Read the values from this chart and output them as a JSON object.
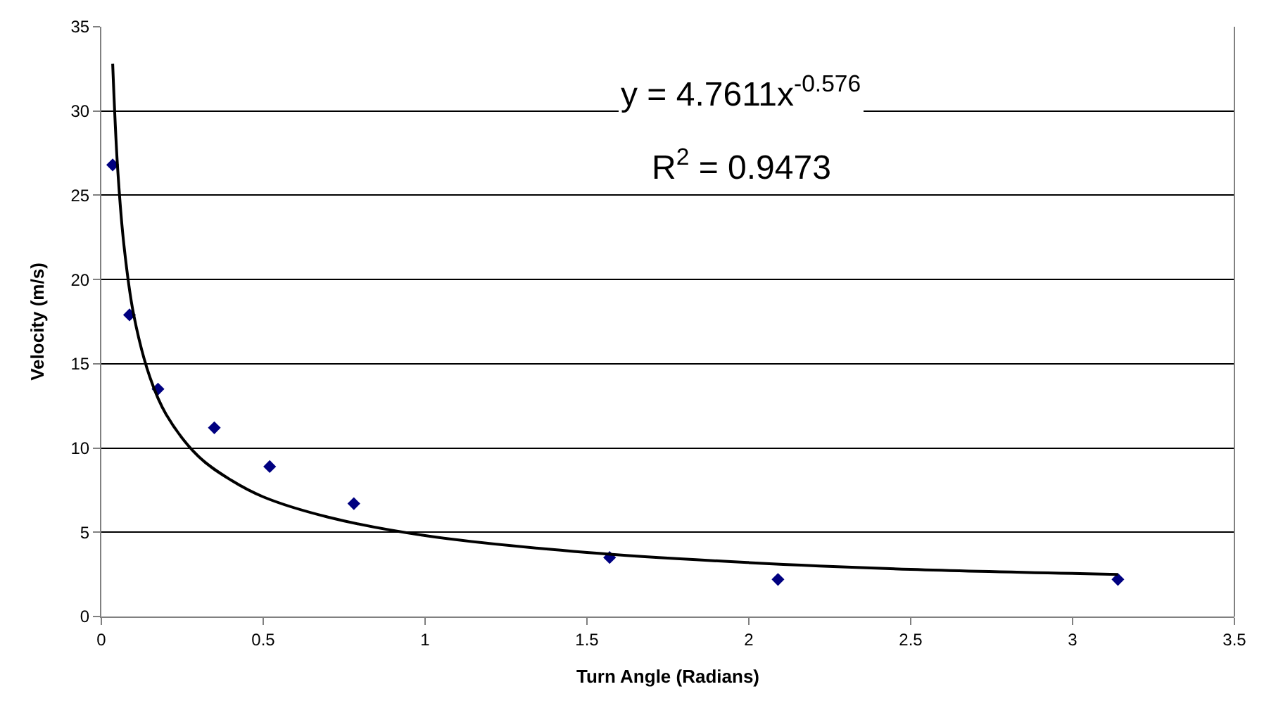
{
  "chart_data": {
    "type": "scatter",
    "xlabel": "Turn Angle (Radians)",
    "ylabel": "Velocity (m/s)",
    "x": [
      0.035,
      0.087,
      0.175,
      0.349,
      0.52,
      0.78,
      1.57,
      2.09,
      3.14
    ],
    "series": [
      {
        "color": "#000080",
        "marker": "diamond",
        "values": [
          26.8,
          17.9,
          13.5,
          11.2,
          8.9,
          6.7,
          3.5,
          2.2,
          2.2
        ]
      },
      {
        "type": "line",
        "color": "#000000",
        "line_style": "solid",
        "x": [
          0.035,
          0.05,
          0.07,
          0.1,
          0.15,
          0.2,
          0.3,
          0.4,
          0.5,
          0.7,
          1.0,
          1.5,
          2.0,
          2.5,
          3.14
        ],
        "values": [
          32.8,
          26.7,
          22.0,
          17.9,
          14.2,
          12.0,
          9.5,
          8.1,
          7.1,
          5.9,
          4.8,
          3.8,
          3.2,
          2.8,
          2.5
        ]
      }
    ],
    "annotations": [
      "y = 4.7611x$^{-0.576}$",
      "R$^{2}$ = 0.9473"
    ],
    "xlim": [
      0,
      3.5
    ],
    "xticks": [
      0,
      0.5,
      1,
      1.5,
      2,
      2.5,
      3,
      3.5
    ],
    "ylim": [
      0,
      35
    ],
    "yticks": [
      0,
      5,
      10,
      15,
      20,
      25,
      30,
      35
    ],
    "grid": "y"
  }
}
